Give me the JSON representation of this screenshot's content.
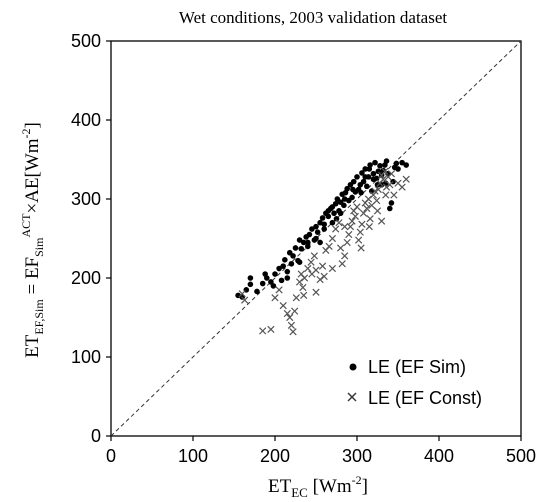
{
  "chart_data": {
    "type": "scatter",
    "title": "Wet conditions, 2003 validation dataset",
    "xlabel": {
      "main": "ET",
      "sub": "EC",
      "units_open": " [Wm",
      "units_sup": "-2",
      "units_close": "]"
    },
    "ylabel": {
      "p1": "ET",
      "p1_sub": "EF,Sim",
      "p2": " = EF",
      "p2_sub": "Sim",
      "p2_sup": "ACT",
      "p3": "×AE[Wm",
      "p3_sup": "-2",
      "p4": "]"
    },
    "xlim": [
      0,
      500
    ],
    "ylim": [
      0,
      500
    ],
    "xticks": [
      "0",
      "100",
      "200",
      "300",
      "400",
      "500"
    ],
    "yticks": [
      "0",
      "100",
      "200",
      "300",
      "400",
      "500"
    ],
    "grid": false,
    "legend_position": "bottom-right",
    "one_to_one_line": true,
    "series": [
      {
        "name": "LE (EF Sim)",
        "marker": "dot",
        "color": "#000000",
        "points": [
          [
            155,
            178
          ],
          [
            160,
            176
          ],
          [
            165,
            185
          ],
          [
            170,
            192
          ],
          [
            170,
            200
          ],
          [
            178,
            183
          ],
          [
            185,
            193
          ],
          [
            188,
            205
          ],
          [
            190,
            200
          ],
          [
            195,
            195
          ],
          [
            198,
            190
          ],
          [
            200,
            205
          ],
          [
            205,
            212
          ],
          [
            208,
            197
          ],
          [
            210,
            215
          ],
          [
            212,
            223
          ],
          [
            215,
            208
          ],
          [
            218,
            232
          ],
          [
            220,
            218
          ],
          [
            222,
            228
          ],
          [
            225,
            238
          ],
          [
            228,
            222
          ],
          [
            230,
            248
          ],
          [
            232,
            237
          ],
          [
            235,
            245
          ],
          [
            238,
            252
          ],
          [
            240,
            240
          ],
          [
            242,
            255
          ],
          [
            245,
            262
          ],
          [
            248,
            248
          ],
          [
            250,
            265
          ],
          [
            252,
            258
          ],
          [
            255,
            270
          ],
          [
            258,
            276
          ],
          [
            260,
            262
          ],
          [
            262,
            282
          ],
          [
            265,
            278
          ],
          [
            268,
            288
          ],
          [
            270,
            270
          ],
          [
            272,
            282
          ],
          [
            274,
            294
          ],
          [
            276,
            300
          ],
          [
            278,
            285
          ],
          [
            280,
            296
          ],
          [
            282,
            306
          ],
          [
            284,
            292
          ],
          [
            286,
            308
          ],
          [
            288,
            313
          ],
          [
            290,
            298
          ],
          [
            292,
            318
          ],
          [
            294,
            302
          ],
          [
            296,
            322
          ],
          [
            298,
            309
          ],
          [
            300,
            328
          ],
          [
            302,
            312
          ],
          [
            304,
            318
          ],
          [
            306,
            333
          ],
          [
            308,
            322
          ],
          [
            310,
            338
          ],
          [
            312,
            316
          ],
          [
            314,
            328
          ],
          [
            316,
            343
          ],
          [
            318,
            310
          ],
          [
            320,
            332
          ],
          [
            322,
            346
          ],
          [
            324,
            326
          ],
          [
            326,
            335
          ],
          [
            328,
            342
          ],
          [
            330,
            318
          ],
          [
            332,
            336
          ],
          [
            334,
            343
          ],
          [
            336,
            348
          ],
          [
            338,
            332
          ],
          [
            340,
            288
          ],
          [
            342,
            295
          ],
          [
            344,
            322
          ],
          [
            346,
            340
          ],
          [
            348,
            345
          ],
          [
            350,
            338
          ],
          [
            355,
            346
          ],
          [
            360,
            343
          ],
          [
            250,
            250
          ],
          [
            255,
            245
          ],
          [
            265,
            285
          ],
          [
            275,
            275
          ],
          [
            285,
            300
          ],
          [
            295,
            312
          ],
          [
            305,
            308
          ],
          [
            310,
            328
          ],
          [
            315,
            338
          ],
          [
            320,
            325
          ],
          [
            325,
            318
          ],
          [
            330,
            330
          ],
          [
            335,
            320
          ],
          [
            280,
            282
          ],
          [
            270,
            290
          ],
          [
            260,
            268
          ],
          [
            240,
            245
          ],
          [
            230,
            220
          ],
          [
            215,
            200
          ]
        ]
      },
      {
        "name": "LE (EF Const)",
        "marker": "x",
        "color": "#555555",
        "points": [
          [
            160,
            180
          ],
          [
            163,
            172
          ],
          [
            185,
            133
          ],
          [
            195,
            135
          ],
          [
            200,
            175
          ],
          [
            205,
            185
          ],
          [
            210,
            165
          ],
          [
            215,
            155
          ],
          [
            218,
            150
          ],
          [
            220,
            140
          ],
          [
            222,
            132
          ],
          [
            224,
            158
          ],
          [
            226,
            175
          ],
          [
            230,
            195
          ],
          [
            232,
            205
          ],
          [
            234,
            188
          ],
          [
            236,
            200
          ],
          [
            240,
            212
          ],
          [
            244,
            220
          ],
          [
            248,
            228
          ],
          [
            250,
            182
          ],
          [
            255,
            198
          ],
          [
            258,
            215
          ],
          [
            262,
            235
          ],
          [
            266,
            240
          ],
          [
            270,
            250
          ],
          [
            274,
            262
          ],
          [
            278,
            270
          ],
          [
            280,
            238
          ],
          [
            282,
            218
          ],
          [
            285,
            228
          ],
          [
            288,
            245
          ],
          [
            290,
            255
          ],
          [
            292,
            265
          ],
          [
            294,
            272
          ],
          [
            296,
            285
          ],
          [
            298,
            278
          ],
          [
            300,
            290
          ],
          [
            302,
            248
          ],
          [
            304,
            258
          ],
          [
            306,
            268
          ],
          [
            308,
            282
          ],
          [
            310,
            295
          ],
          [
            312,
            288
          ],
          [
            314,
            300
          ],
          [
            316,
            275
          ],
          [
            318,
            292
          ],
          [
            320,
            305
          ],
          [
            322,
            310
          ],
          [
            324,
            298
          ],
          [
            326,
            312
          ],
          [
            328,
            320
          ],
          [
            330,
            330
          ],
          [
            332,
            325
          ],
          [
            334,
            335
          ],
          [
            336,
            315
          ],
          [
            338,
            328
          ],
          [
            340,
            318
          ],
          [
            342,
            332
          ],
          [
            345,
            305
          ],
          [
            350,
            320
          ],
          [
            355,
            315
          ],
          [
            360,
            325
          ],
          [
            235,
            178
          ],
          [
            245,
            205
          ],
          [
            250,
            210
          ],
          [
            260,
            202
          ],
          [
            270,
            212
          ],
          [
            285,
            265
          ],
          [
            315,
            265
          ],
          [
            305,
            238
          ],
          [
            325,
            285
          ],
          [
            330,
            272
          ],
          [
            335,
            305
          ]
        ]
      }
    ],
    "colors": {
      "one_to_one_line": "#333333",
      "axes": "#000000"
    }
  }
}
